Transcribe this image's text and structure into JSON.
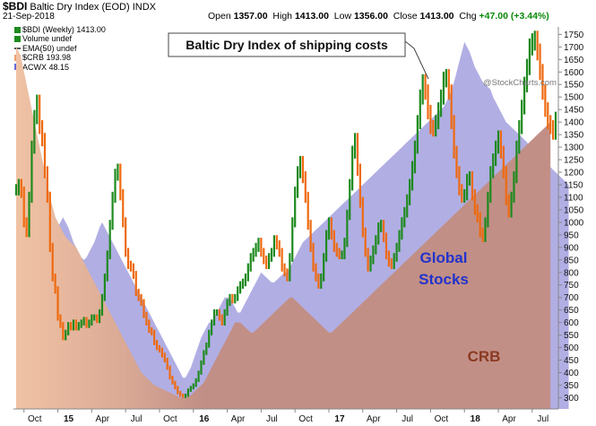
{
  "header": {
    "symbol": "$BDI",
    "name": "Baltic Dry Index (EOD)",
    "exchange": "INDX",
    "date": "21-Sep-2018",
    "open_label": "Open",
    "open": "1357.00",
    "high_label": "High",
    "high": "1413.00",
    "low_label": "Low",
    "low": "1356.00",
    "close_label": "Close",
    "close": "1413.00",
    "chg_label": "Chg",
    "chg": "+47.00 (+3.44%)",
    "watermark": "@StockCharts.com"
  },
  "legend": {
    "main": "$BDI (Weekly) 1413.00",
    "volume": "Volume undef",
    "ema": "EMA(50) undef",
    "crb": "$CRB 193.98",
    "acwx": "ACWX 48.15"
  },
  "colors": {
    "up": "#1e8a1e",
    "down": "#ee6a10",
    "crb_fill": "#c28f86",
    "acwx_fill": "#b1aee4",
    "crb_early": "#f3c5a6",
    "global_text": "#2233cc",
    "crb_text": "#8b3a22"
  },
  "annotations": {
    "bdi_label": "Baltic Dry Index of shipping costs",
    "global_stocks_line1": "Global",
    "global_stocks_line2": "Stocks",
    "crb_label": "CRB"
  },
  "chart_data": {
    "type": "line",
    "title": "Baltic Dry Index (EOD)",
    "ylim": [
      255,
      1780
    ],
    "y_ticks": [
      300,
      350,
      400,
      450,
      500,
      550,
      600,
      650,
      700,
      750,
      800,
      850,
      900,
      950,
      1000,
      1050,
      1100,
      1150,
      1200,
      1250,
      1300,
      1350,
      1400,
      1450,
      1500,
      1550,
      1600,
      1650,
      1700,
      1750
    ],
    "x_ticks": [
      "Oct",
      "15",
      "Apr",
      "Jul",
      "Oct",
      "16",
      "Apr",
      "Jul",
      "Oct",
      "17",
      "Apr",
      "Jul",
      "Oct",
      "18",
      "Apr",
      "Jul"
    ],
    "x_tick_weeks": [
      3,
      16,
      29,
      42,
      55,
      68,
      81,
      94,
      107,
      120,
      133,
      146,
      159,
      172,
      185,
      198
    ],
    "bold_ticks": [
      "15",
      "16",
      "17",
      "18"
    ],
    "grid": false,
    "series": [
      {
        "name": "$BDI (Weekly) 1413.00",
        "style": "weekly bars",
        "x_start_week": 0,
        "values": [
          1130,
          1150,
          1120,
          1000,
          960,
          1100,
          1300,
          1420,
          1480,
          1380,
          1330,
          1200,
          1100,
          900,
          780,
          730,
          620,
          590,
          540,
          560,
          590,
          580,
          600,
          580,
          590,
          600,
          610,
          590,
          600,
          620,
          620,
          610,
          640,
          700,
          780,
          870,
          990,
          1100,
          1190,
          1210,
          1110,
          1000,
          880,
          830,
          820,
          790,
          720,
          700,
          680,
          630,
          600,
          570,
          560,
          520,
          500,
          490,
          470,
          450,
          420,
          380,
          360,
          340,
          320,
          310,
          305,
          310,
          330,
          340,
          350,
          370,
          400,
          440,
          480,
          510,
          560,
          600,
          640,
          640,
          620,
          600,
          640,
          680,
          700,
          690,
          700,
          730,
          750,
          760,
          780,
          820,
          860,
          880,
          900,
          920,
          880,
          850,
          830,
          860,
          880,
          930,
          910,
          880,
          820,
          800,
          780,
          860,
          1000,
          1120,
          1200,
          1240,
          1180,
          1100,
          990,
          900,
          820,
          780,
          750,
          780,
          860,
          950,
          1000,
          950,
          900,
          880,
          870,
          870,
          920,
          1030,
          1150,
          1280,
          1330,
          1210,
          1080,
          960,
          880,
          820,
          850,
          890,
          930,
          980,
          990,
          940,
          870,
          840,
          830,
          860,
          900,
          950,
          1000,
          1040,
          1090,
          1150,
          1220,
          1300,
          1400,
          1500,
          1560,
          1520,
          1440,
          1380,
          1370,
          1400,
          1450,
          1500,
          1570,
          1580,
          1520,
          1400,
          1280,
          1200,
          1130,
          1100,
          1110,
          1170,
          1180,
          1110,
          1050,
          1020,
          960,
          940,
          1000,
          1100,
          1200,
          1250,
          1300,
          1340,
          1280,
          1200,
          1090,
          1040,
          1100,
          1180,
          1300,
          1380,
          1460,
          1550,
          1620,
          1700,
          1720,
          1730,
          1680,
          1600,
          1520,
          1450,
          1400,
          1380,
          1357,
          1413
        ]
      },
      {
        "name": "ACWX 48.15",
        "style": "area",
        "x_start_week": 0,
        "values": [
          1650,
          1600,
          1550,
          1500,
          1450,
          1400,
          1350,
          1300,
          1280,
          1250,
          1200,
          1150,
          1100,
          1060,
          1020,
          1000,
          980,
          1000,
          1020,
          1000,
          980,
          950,
          920,
          900,
          880,
          860,
          850,
          860,
          880,
          900,
          920,
          950,
          980,
          1000,
          980,
          960,
          940,
          920,
          900,
          880,
          860,
          840,
          820,
          800,
          780,
          760,
          740,
          720,
          700,
          680,
          660,
          640,
          620,
          600,
          580,
          560,
          540,
          520,
          500,
          480,
          460,
          440,
          420,
          400,
          380,
          380,
          400,
          420,
          450,
          480,
          510,
          540,
          560,
          580,
          600,
          600,
          620,
          640,
          660,
          680,
          700,
          700,
          700,
          680,
          660,
          640,
          640,
          660,
          680,
          700,
          720,
          740,
          760,
          780,
          800,
          790,
          780,
          770,
          760,
          760,
          770,
          780,
          790,
          800,
          800,
          820,
          840,
          860,
          880,
          900,
          920,
          930,
          940,
          950,
          960,
          970,
          980,
          990,
          1000,
          1010,
          1020,
          1030,
          1040,
          1050,
          1060,
          1070,
          1080,
          1090,
          1100,
          1110,
          1120,
          1130,
          1140,
          1150,
          1160,
          1170,
          1180,
          1190,
          1200,
          1210,
          1220,
          1230,
          1240,
          1250,
          1260,
          1270,
          1280,
          1290,
          1300,
          1310,
          1320,
          1330,
          1340,
          1350,
          1360,
          1370,
          1380,
          1390,
          1400,
          1410,
          1420,
          1430,
          1440,
          1450,
          1460,
          1480,
          1500,
          1530,
          1560,
          1600,
          1640,
          1680,
          1720,
          1700,
          1680,
          1650,
          1620,
          1600,
          1580,
          1560,
          1550,
          1540,
          1530,
          1500,
          1480,
          1460,
          1440,
          1420,
          1400,
          1390,
          1380,
          1370,
          1360,
          1350,
          1340,
          1330,
          1320,
          1300,
          1290,
          1280,
          1270,
          1260,
          1250,
          1240,
          1230,
          1220,
          1210,
          1200,
          1190,
          1180,
          1170,
          1160,
          1150
        ]
      },
      {
        "name": "$CRB 193.98",
        "style": "area",
        "x_start_week": 0,
        "values": [
          1700,
          1680,
          1650,
          1600,
          1550,
          1500,
          1450,
          1400,
          1350,
          1300,
          1250,
          1200,
          1150,
          1100,
          1060,
          1020,
          1000,
          980,
          960,
          940,
          930,
          920,
          910,
          900,
          880,
          860,
          840,
          820,
          800,
          780,
          760,
          740,
          720,
          700,
          680,
          660,
          640,
          620,
          600,
          580,
          560,
          540,
          520,
          500,
          480,
          460,
          440,
          420,
          400,
          390,
          380,
          370,
          360,
          350,
          345,
          340,
          335,
          330,
          325,
          320,
          315,
          310,
          305,
          300,
          298,
          300,
          305,
          310,
          320,
          330,
          340,
          350,
          360,
          380,
          400,
          420,
          440,
          460,
          480,
          500,
          520,
          540,
          560,
          580,
          600,
          600,
          600,
          590,
          580,
          570,
          560,
          560,
          570,
          580,
          590,
          600,
          610,
          620,
          630,
          640,
          650,
          660,
          670,
          680,
          690,
          700,
          700,
          690,
          680,
          670,
          660,
          650,
          640,
          630,
          620,
          610,
          600,
          590,
          580,
          570,
          560,
          560,
          570,
          580,
          590,
          600,
          610,
          620,
          630,
          640,
          650,
          660,
          670,
          680,
          690,
          700,
          710,
          720,
          730,
          740,
          750,
          760,
          770,
          780,
          790,
          800,
          810,
          820,
          830,
          840,
          850,
          860,
          870,
          880,
          890,
          900,
          910,
          920,
          930,
          940,
          950,
          960,
          970,
          980,
          990,
          1000,
          1010,
          1020,
          1030,
          1040,
          1050,
          1060,
          1070,
          1080,
          1090,
          1100,
          1110,
          1120,
          1130,
          1140,
          1150,
          1160,
          1170,
          1180,
          1190,
          1200,
          1210,
          1220,
          1230,
          1240,
          1250,
          1260,
          1270,
          1280,
          1290,
          1300,
          1310,
          1320,
          1330,
          1340,
          1350,
          1360,
          1370,
          1380,
          1390,
          1400
        ]
      }
    ]
  }
}
